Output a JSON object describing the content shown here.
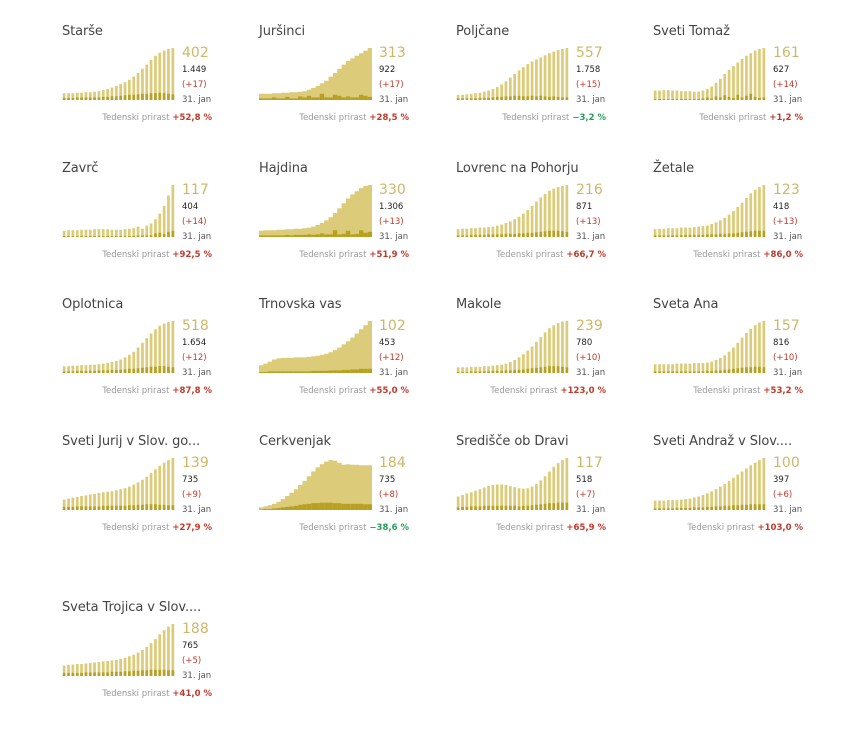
{
  "colors": {
    "bar": "#dccb78",
    "bar_dark": "#b7a022",
    "big_number": "#cdb86a",
    "positive": "#c0392b",
    "negative": "#27a05a"
  },
  "footer_label": "Tedenski prirast",
  "chart_data": [
    {
      "type": "bar",
      "title": "Starše",
      "value": "402",
      "cases": "1.449",
      "delta": "(+17)",
      "date": "31. jan",
      "weekly_change": "+52,8 %",
      "trend": "up",
      "values": [
        0.13,
        0.13,
        0.13,
        0.14,
        0.14,
        0.15,
        0.15,
        0.16,
        0.17,
        0.19,
        0.21,
        0.24,
        0.27,
        0.31,
        0.34,
        0.39,
        0.45,
        0.52,
        0.6,
        0.68,
        0.77,
        0.85,
        0.91,
        0.95,
        0.98,
        1.0
      ],
      "highlight": [
        0.04,
        0.04,
        0.04,
        0.05,
        0.05,
        0.05,
        0.05,
        0.05,
        0.05,
        0.06,
        0.06,
        0.07,
        0.07,
        0.08,
        0.09,
        0.1,
        0.1,
        0.11,
        0.12,
        0.12,
        0.13,
        0.13,
        0.14,
        0.13,
        0.12,
        0.11
      ]
    },
    {
      "type": "area",
      "title": "Juršinci",
      "value": "313",
      "cases": "922",
      "delta": "(+17)",
      "date": "31. jan",
      "weekly_change": "+28,5 %",
      "trend": "up",
      "values": [
        0.12,
        0.12,
        0.12,
        0.13,
        0.13,
        0.14,
        0.14,
        0.15,
        0.15,
        0.16,
        0.17,
        0.2,
        0.23,
        0.27,
        0.32,
        0.37,
        0.45,
        0.52,
        0.6,
        0.68,
        0.75,
        0.8,
        0.85,
        0.9,
        0.95,
        1.0
      ],
      "highlight": [
        0.03,
        0.03,
        0.03,
        0.05,
        0.03,
        0.03,
        0.06,
        0.03,
        0.03,
        0.07,
        0.05,
        0.08,
        0.05,
        0.05,
        0.12,
        0.05,
        0.05,
        0.1,
        0.08,
        0.05,
        0.07,
        0.05,
        0.05,
        0.1,
        0.08,
        0.06
      ]
    },
    {
      "type": "bar",
      "title": "Poljčane",
      "value": "557",
      "cases": "1.758",
      "delta": "(+15)",
      "date": "31. jan",
      "weekly_change": "−3,2 %",
      "trend": "down",
      "values": [
        0.1,
        0.1,
        0.11,
        0.12,
        0.13,
        0.14,
        0.16,
        0.18,
        0.21,
        0.25,
        0.3,
        0.36,
        0.43,
        0.5,
        0.57,
        0.63,
        0.69,
        0.74,
        0.78,
        0.82,
        0.86,
        0.9,
        0.93,
        0.96,
        0.98,
        1.0
      ],
      "highlight": [
        0.03,
        0.03,
        0.03,
        0.03,
        0.03,
        0.04,
        0.04,
        0.04,
        0.05,
        0.06,
        0.06,
        0.07,
        0.07,
        0.08,
        0.08,
        0.07,
        0.07,
        0.08,
        0.07,
        0.08,
        0.07,
        0.06,
        0.07,
        0.06,
        0.05,
        0.05
      ]
    },
    {
      "type": "bar",
      "title": "Sveti Tomaž",
      "value": "161",
      "cases": "627",
      "delta": "(+14)",
      "date": "31. jan",
      "weekly_change": "+1,2 %",
      "trend": "up",
      "values": [
        0.18,
        0.18,
        0.19,
        0.19,
        0.18,
        0.18,
        0.17,
        0.17,
        0.17,
        0.16,
        0.16,
        0.18,
        0.21,
        0.26,
        0.33,
        0.41,
        0.5,
        0.58,
        0.65,
        0.72,
        0.79,
        0.85,
        0.9,
        0.95,
        0.98,
        1.0
      ],
      "highlight": [
        0.02,
        0.02,
        0.02,
        0.02,
        0.02,
        0.02,
        0.02,
        0.02,
        0.02,
        0.02,
        0.02,
        0.03,
        0.05,
        0.03,
        0.07,
        0.05,
        0.09,
        0.06,
        0.04,
        0.1,
        0.05,
        0.08,
        0.12,
        0.06,
        0.04,
        0.05
      ]
    },
    {
      "type": "bar",
      "title": "Zavrč",
      "value": "117",
      "cases": "404",
      "delta": "(+14)",
      "date": "31. jan",
      "weekly_change": "+92,5 %",
      "trend": "up",
      "values": [
        0.12,
        0.13,
        0.13,
        0.13,
        0.14,
        0.14,
        0.14,
        0.15,
        0.15,
        0.15,
        0.15,
        0.14,
        0.14,
        0.14,
        0.15,
        0.16,
        0.17,
        0.2,
        0.16,
        0.22,
        0.26,
        0.34,
        0.45,
        0.6,
        0.8,
        1.0
      ],
      "highlight": [
        0.02,
        0.02,
        0.02,
        0.02,
        0.02,
        0.02,
        0.02,
        0.02,
        0.02,
        0.02,
        0.02,
        0.02,
        0.02,
        0.02,
        0.02,
        0.02,
        0.02,
        0.03,
        0.03,
        0.03,
        0.03,
        0.07,
        0.08,
        0.06,
        0.1,
        0.12
      ]
    },
    {
      "type": "area",
      "title": "Hajdina",
      "value": "330",
      "cases": "1.306",
      "delta": "(+13)",
      "date": "31. jan",
      "weekly_change": "+51,9 %",
      "trend": "up",
      "values": [
        0.12,
        0.13,
        0.13,
        0.13,
        0.14,
        0.14,
        0.15,
        0.15,
        0.16,
        0.16,
        0.17,
        0.18,
        0.2,
        0.23,
        0.27,
        0.32,
        0.38,
        0.46,
        0.55,
        0.65,
        0.74,
        0.82,
        0.88,
        0.94,
        0.98,
        1.0
      ],
      "highlight": [
        0.03,
        0.03,
        0.03,
        0.03,
        0.03,
        0.03,
        0.04,
        0.03,
        0.04,
        0.04,
        0.04,
        0.05,
        0.04,
        0.05,
        0.07,
        0.05,
        0.05,
        0.13,
        0.05,
        0.06,
        0.12,
        0.05,
        0.06,
        0.13,
        0.08,
        0.1
      ]
    },
    {
      "type": "bar",
      "title": "Lovrenc na Pohorju",
      "value": "216",
      "cases": "871",
      "delta": "(+13)",
      "date": "31. jan",
      "weekly_change": "+66,7 %",
      "trend": "up",
      "values": [
        0.15,
        0.16,
        0.16,
        0.17,
        0.17,
        0.18,
        0.18,
        0.19,
        0.2,
        0.22,
        0.24,
        0.27,
        0.3,
        0.34,
        0.39,
        0.45,
        0.52,
        0.6,
        0.68,
        0.76,
        0.83,
        0.89,
        0.93,
        0.96,
        0.98,
        1.0
      ],
      "highlight": [
        0.03,
        0.03,
        0.03,
        0.04,
        0.04,
        0.04,
        0.04,
        0.05,
        0.05,
        0.05,
        0.05,
        0.06,
        0.06,
        0.06,
        0.07,
        0.07,
        0.08,
        0.08,
        0.09,
        0.1,
        0.11,
        0.12,
        0.12,
        0.12,
        0.11,
        0.1
      ]
    },
    {
      "type": "bar",
      "title": "Žetale",
      "value": "123",
      "cases": "418",
      "delta": "(+13)",
      "date": "31. jan",
      "weekly_change": "+86,0 %",
      "trend": "up",
      "values": [
        0.15,
        0.16,
        0.16,
        0.17,
        0.17,
        0.17,
        0.18,
        0.18,
        0.18,
        0.19,
        0.2,
        0.21,
        0.22,
        0.25,
        0.28,
        0.32,
        0.37,
        0.43,
        0.5,
        0.58,
        0.66,
        0.75,
        0.84,
        0.91,
        0.96,
        1.0
      ],
      "highlight": [
        0.03,
        0.03,
        0.03,
        0.03,
        0.03,
        0.03,
        0.03,
        0.04,
        0.04,
        0.04,
        0.04,
        0.04,
        0.05,
        0.05,
        0.05,
        0.06,
        0.06,
        0.07,
        0.07,
        0.08,
        0.09,
        0.1,
        0.11,
        0.12,
        0.12,
        0.12
      ]
    },
    {
      "type": "bar",
      "title": "Oplotnica",
      "value": "518",
      "cases": "1.654",
      "delta": "(+12)",
      "date": "31. jan",
      "weekly_change": "+87,8 %",
      "trend": "up",
      "values": [
        0.13,
        0.13,
        0.14,
        0.14,
        0.15,
        0.15,
        0.16,
        0.16,
        0.17,
        0.18,
        0.19,
        0.21,
        0.23,
        0.26,
        0.3,
        0.35,
        0.41,
        0.49,
        0.58,
        0.67,
        0.76,
        0.84,
        0.91,
        0.95,
        0.98,
        1.0
      ],
      "highlight": [
        0.03,
        0.03,
        0.03,
        0.04,
        0.04,
        0.04,
        0.04,
        0.04,
        0.05,
        0.05,
        0.05,
        0.06,
        0.06,
        0.06,
        0.07,
        0.08,
        0.08,
        0.09,
        0.1,
        0.11,
        0.12,
        0.12,
        0.13,
        0.13,
        0.12,
        0.11
      ]
    },
    {
      "type": "area",
      "title": "Trnovska vas",
      "value": "102",
      "cases": "453",
      "delta": "(+12)",
      "date": "31. jan",
      "weekly_change": "+55,0 %",
      "trend": "up",
      "values": [
        0.15,
        0.18,
        0.22,
        0.26,
        0.28,
        0.29,
        0.29,
        0.29,
        0.3,
        0.3,
        0.3,
        0.31,
        0.32,
        0.33,
        0.35,
        0.37,
        0.4,
        0.44,
        0.49,
        0.55,
        0.61,
        0.68,
        0.76,
        0.84,
        0.92,
        1.0
      ],
      "highlight": [
        0.02,
        0.02,
        0.03,
        0.03,
        0.03,
        0.03,
        0.03,
        0.03,
        0.03,
        0.03,
        0.03,
        0.03,
        0.04,
        0.04,
        0.04,
        0.04,
        0.05,
        0.05,
        0.05,
        0.06,
        0.06,
        0.07,
        0.07,
        0.08,
        0.08,
        0.08
      ]
    },
    {
      "type": "bar",
      "title": "Makole",
      "value": "239",
      "cases": "780",
      "delta": "(+10)",
      "date": "31. jan",
      "weekly_change": "+123,0 %",
      "trend": "up",
      "values": [
        0.11,
        0.11,
        0.11,
        0.12,
        0.12,
        0.12,
        0.13,
        0.13,
        0.14,
        0.15,
        0.16,
        0.18,
        0.21,
        0.25,
        0.3,
        0.36,
        0.43,
        0.51,
        0.6,
        0.69,
        0.78,
        0.86,
        0.92,
        0.96,
        0.99,
        1.0
      ],
      "highlight": [
        0.02,
        0.02,
        0.02,
        0.03,
        0.03,
        0.03,
        0.03,
        0.03,
        0.04,
        0.04,
        0.04,
        0.05,
        0.05,
        0.06,
        0.06,
        0.07,
        0.08,
        0.09,
        0.1,
        0.11,
        0.12,
        0.13,
        0.13,
        0.13,
        0.12,
        0.11
      ]
    },
    {
      "type": "bar",
      "title": "Sveta Ana",
      "value": "157",
      "cases": "816",
      "delta": "(+10)",
      "date": "31. jan",
      "weekly_change": "+53,2 %",
      "trend": "up",
      "values": [
        0.17,
        0.17,
        0.17,
        0.17,
        0.17,
        0.18,
        0.18,
        0.18,
        0.18,
        0.19,
        0.19,
        0.19,
        0.2,
        0.22,
        0.25,
        0.29,
        0.34,
        0.41,
        0.49,
        0.58,
        0.68,
        0.77,
        0.85,
        0.92,
        0.97,
        1.0
      ],
      "highlight": [
        0.03,
        0.03,
        0.03,
        0.03,
        0.03,
        0.03,
        0.03,
        0.03,
        0.03,
        0.03,
        0.03,
        0.03,
        0.04,
        0.04,
        0.05,
        0.05,
        0.06,
        0.07,
        0.08,
        0.09,
        0.1,
        0.11,
        0.11,
        0.12,
        0.12,
        0.11
      ]
    },
    {
      "type": "bar",
      "title": "Sveti Jurij v Slov. go...",
      "value": "139",
      "cases": "735",
      "delta": "(+9)",
      "date": "31. jan",
      "weekly_change": "+27,9 %",
      "trend": "up",
      "values": [
        0.2,
        0.22,
        0.24,
        0.25,
        0.27,
        0.28,
        0.3,
        0.31,
        0.33,
        0.34,
        0.35,
        0.36,
        0.38,
        0.4,
        0.42,
        0.45,
        0.49,
        0.53,
        0.58,
        0.64,
        0.71,
        0.78,
        0.85,
        0.91,
        0.96,
        1.0
      ],
      "highlight": [
        0.06,
        0.06,
        0.06,
        0.07,
        0.07,
        0.07,
        0.07,
        0.07,
        0.07,
        0.08,
        0.08,
        0.08,
        0.08,
        0.08,
        0.08,
        0.09,
        0.09,
        0.1,
        0.1,
        0.11,
        0.11,
        0.11,
        0.1,
        0.1,
        0.09,
        0.09
      ]
    },
    {
      "type": "area",
      "title": "Cerkvenjak",
      "value": "184",
      "cases": "735",
      "delta": "(+8)",
      "date": "31. jan",
      "weekly_change": "−38,6 %",
      "trend": "down",
      "values": [
        0.05,
        0.07,
        0.09,
        0.12,
        0.16,
        0.21,
        0.27,
        0.33,
        0.4,
        0.48,
        0.56,
        0.65,
        0.74,
        0.82,
        0.88,
        0.93,
        0.96,
        0.95,
        0.91,
        0.87,
        0.88,
        0.87,
        0.87,
        0.86,
        0.86,
        0.86
      ],
      "highlight": [
        0.01,
        0.02,
        0.02,
        0.03,
        0.04,
        0.05,
        0.06,
        0.07,
        0.08,
        0.1,
        0.11,
        0.12,
        0.13,
        0.13,
        0.14,
        0.14,
        0.14,
        0.13,
        0.13,
        0.12,
        0.12,
        0.12,
        0.12,
        0.12,
        0.11,
        0.11
      ]
    },
    {
      "type": "bar",
      "title": "Središče ob Dravi",
      "value": "117",
      "cases": "518",
      "delta": "(+7)",
      "date": "31. jan",
      "weekly_change": "+65,9 %",
      "trend": "up",
      "values": [
        0.26,
        0.29,
        0.32,
        0.34,
        0.37,
        0.4,
        0.43,
        0.46,
        0.48,
        0.49,
        0.49,
        0.48,
        0.46,
        0.44,
        0.42,
        0.41,
        0.42,
        0.45,
        0.5,
        0.57,
        0.65,
        0.74,
        0.83,
        0.9,
        0.96,
        1.0
      ],
      "highlight": [
        0.05,
        0.06,
        0.06,
        0.07,
        0.07,
        0.07,
        0.08,
        0.08,
        0.08,
        0.08,
        0.08,
        0.08,
        0.08,
        0.08,
        0.07,
        0.08,
        0.08,
        0.09,
        0.1,
        0.11,
        0.12,
        0.13,
        0.13,
        0.14,
        0.14,
        0.14
      ]
    },
    {
      "type": "bar",
      "title": "Sveti Andraž v Slov....",
      "value": "100",
      "cases": "397",
      "delta": "(+6)",
      "date": "31. jan",
      "weekly_change": "+103,0 %",
      "trend": "up",
      "values": [
        0.18,
        0.18,
        0.18,
        0.19,
        0.19,
        0.19,
        0.2,
        0.21,
        0.22,
        0.24,
        0.26,
        0.29,
        0.32,
        0.36,
        0.4,
        0.45,
        0.5,
        0.56,
        0.62,
        0.68,
        0.74,
        0.8,
        0.86,
        0.91,
        0.96,
        1.0
      ],
      "highlight": [
        0.03,
        0.03,
        0.03,
        0.03,
        0.03,
        0.04,
        0.04,
        0.04,
        0.04,
        0.05,
        0.05,
        0.05,
        0.06,
        0.06,
        0.07,
        0.07,
        0.08,
        0.08,
        0.09,
        0.09,
        0.1,
        0.1,
        0.11,
        0.11,
        0.11,
        0.11
      ]
    },
    {
      "type": "bar",
      "title": "Sveta Trojica v Slov....",
      "value": "188",
      "cases": "765",
      "delta": "(+5)",
      "date": "31. jan",
      "weekly_change": "+41,0 %",
      "trend": "up",
      "values": [
        0.2,
        0.21,
        0.22,
        0.23,
        0.23,
        0.24,
        0.25,
        0.26,
        0.27,
        0.28,
        0.29,
        0.3,
        0.31,
        0.33,
        0.35,
        0.38,
        0.41,
        0.45,
        0.5,
        0.56,
        0.63,
        0.71,
        0.8,
        0.88,
        0.95,
        1.0
      ],
      "highlight": [
        0.06,
        0.06,
        0.06,
        0.06,
        0.06,
        0.07,
        0.07,
        0.07,
        0.07,
        0.07,
        0.07,
        0.08,
        0.08,
        0.08,
        0.09,
        0.09,
        0.1,
        0.1,
        0.11,
        0.11,
        0.12,
        0.12,
        0.12,
        0.12,
        0.11,
        0.11
      ]
    }
  ]
}
